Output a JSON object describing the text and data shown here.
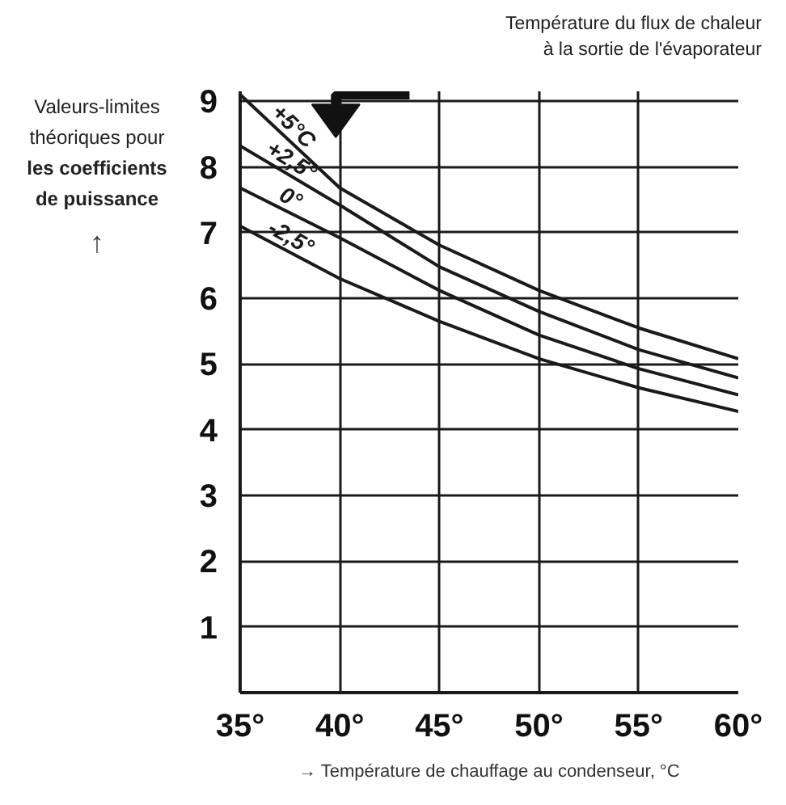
{
  "chart_data": {
    "type": "line",
    "legend_title": "Température du flux de chaleur à la sortie de l'évaporateur",
    "ylabel": "Valeurs-limites théoriques pour les coefficients de puissance",
    "xlabel": "→ Température de chauffage au condenseur, °C",
    "x": [
      35,
      40,
      45,
      50,
      55,
      60
    ],
    "series": [
      {
        "name": "+5°C",
        "color": "#1a1a1a",
        "values": [
          9.1,
          7.68,
          6.81,
          6.12,
          5.55,
          5.08
        ]
      },
      {
        "name": "+2,5°",
        "color": "#1a1a1a",
        "values": [
          8.32,
          7.42,
          6.48,
          5.8,
          5.22,
          4.79
        ]
      },
      {
        "name": "0°",
        "color": "#1a1a1a",
        "values": [
          7.68,
          6.92,
          6.12,
          5.44,
          4.93,
          4.53
        ]
      },
      {
        "name": "-2,5°",
        "color": "#1a1a1a",
        "values": [
          7.1,
          6.3,
          5.65,
          5.08,
          4.64,
          4.28
        ]
      }
    ],
    "annotations": [
      "↑"
    ],
    "xlim": [
      35,
      60
    ],
    "ylim": [
      0,
      9.15
    ],
    "xticks": [
      {
        "value": 35,
        "label": "35°"
      },
      {
        "value": 40,
        "label": "40°"
      },
      {
        "value": 45,
        "label": "45°"
      },
      {
        "value": 50,
        "label": "50°"
      },
      {
        "value": 55,
        "label": "55°"
      },
      {
        "value": 60,
        "label": "60°"
      }
    ],
    "yticks": [
      1,
      2,
      3,
      4,
      5,
      6,
      7,
      8,
      9
    ],
    "grid": true,
    "legend": "top left",
    "marker": "none",
    "line_style": "solid"
  }
}
